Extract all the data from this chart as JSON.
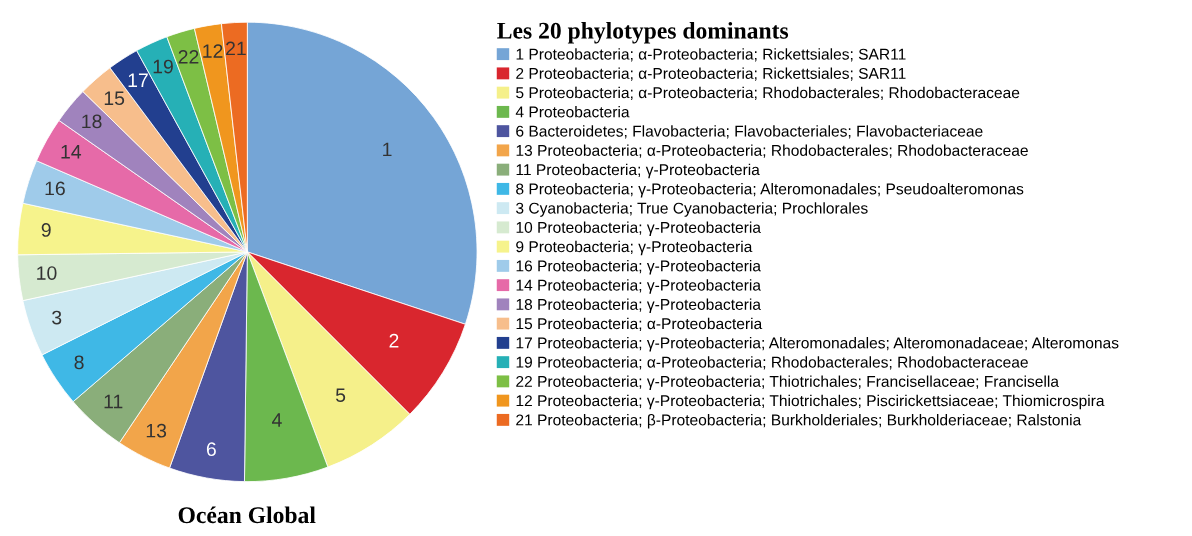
{
  "chart_data": {
    "type": "pie",
    "title": "Océan Global",
    "legend_title": "Les 20 phylotypes dominants",
    "categories": [
      "1 Proteobacteria; α-Proteobacteria; Rickettsiales; SAR11",
      "2 Proteobacteria; α-Proteobacteria; Rickettsiales; SAR11",
      "5 Proteobacteria; α-Proteobacteria; Rhodobacterales; Rhodobacteraceae",
      "4 Proteobacteria",
      "6 Bacteroidetes; Flavobacteria; Flavobacteriales; Flavobacteriaceae",
      "13 Proteobacteria; α-Proteobacteria; Rhodobacterales; Rhodobacteraceae",
      "11 Proteobacteria; γ-Proteobacteria",
      "8 Proteobacteria; γ-Proteobacteria; Alteromonadales; Pseudoalteromonas",
      "3 Cyanobacteria; True Cyanobacteria; Prochlorales",
      "10 Proteobacteria; γ-Proteobacteria",
      "9 Proteobacteria; γ-Proteobacteria",
      "16 Proteobacteria; γ-Proteobacteria",
      "14 Proteobacteria; γ-Proteobacteria",
      "18 Proteobacteria; γ-Proteobacteria",
      "15 Proteobacteria; α-Proteobacteria",
      "17 Proteobacteria; γ-Proteobacteria; Alteromonadales; Alteromonadaceae; Alteromonas",
      "19 Proteobacteria; α-Proteobacteria; Rhodobacterales; Rhodobacteraceae",
      "22 Proteobacteria; γ-Proteobacteria; Thiotrichales; Francisellaceae; Francisella",
      "12 Proteobacteria; γ-Proteobacteria; Thiotrichales; Piscirickettsiaceae; Thiomicrospira",
      "21 Proteobacteria; β-Proteobacteria; Burkholderiales; Burkholderiaceae; Ralstonia"
    ],
    "values": [
      30.1,
      7.4,
      6.8,
      5.9,
      5.3,
      3.9,
      4.3,
      3.9,
      4.0,
      3.2,
      3.6,
      3.1,
      3.2,
      2.6,
      2.5,
      2.2,
      2.3,
      2.0,
      1.9,
      1.8
    ],
    "colors": [
      "#75a5d6",
      "#d9262e",
      "#f5f08a",
      "#6cb84e",
      "#4e559f",
      "#f2a54a",
      "#8aae7a",
      "#3fb8e6",
      "#cde9f2",
      "#d6ead0",
      "#f6f38c",
      "#9fcbea",
      "#e66aa8",
      "#a083bd",
      "#f7be8c",
      "#223f8f",
      "#26b0b6",
      "#7dbf45",
      "#f0961e",
      "#ec6b22"
    ],
    "legend": "right",
    "annotations": [
      {
        "text": "1",
        "x": "1 Proteobacteria; α-Proteobacteria; Rickettsiales; SAR11"
      },
      {
        "text": "2",
        "x": "2 Proteobacteria; α-Proteobacteria; Rickettsiales; SAR11"
      },
      {
        "text": "5",
        "x": "5 Proteobacteria; α-Proteobacteria; Rhodobacterales; Rhodobacteraceae"
      },
      {
        "text": "4",
        "x": "4 Proteobacteria"
      },
      {
        "text": "6",
        "x": "6 Bacteroidetes; Flavobacteria; Flavobacteriales; Flavobacteriaceae"
      },
      {
        "text": "13",
        "x": "13 Proteobacteria; α-Proteobacteria; Rhodobacterales; Rhodobacteraceae"
      },
      {
        "text": "11",
        "x": "11 Proteobacteria; γ-Proteobacteria"
      },
      {
        "text": "8",
        "x": "8 Proteobacteria; γ-Proteobacteria; Alteromonadales; Pseudoalteromonas"
      },
      {
        "text": "3",
        "x": "3 Cyanobacteria; True Cyanobacteria; Prochlorales"
      },
      {
        "text": "10",
        "x": "10 Proteobacteria; γ-Proteobacteria"
      },
      {
        "text": "9",
        "x": "9 Proteobacteria; γ-Proteobacteria"
      },
      {
        "text": "16",
        "x": "16 Proteobacteria; γ-Proteobacteria"
      },
      {
        "text": "14",
        "x": "14 Proteobacteria; γ-Proteobacteria"
      },
      {
        "text": "18",
        "x": "18 Proteobacteria; γ-Proteobacteria"
      },
      {
        "text": "15",
        "x": "15 Proteobacteria; α-Proteobacteria"
      },
      {
        "text": "17",
        "x": "17 Proteobacteria; γ-Proteobacteria; Alteromonadales; Alteromonadaceae; Alteromonas"
      },
      {
        "text": "19",
        "x": "19 Proteobacteria; α-Proteobacteria; Rhodobacterales; Rhodobacteraceae"
      },
      {
        "text": "22",
        "x": "22 Proteobacteria; γ-Proteobacteria; Thiotrichales; Francisellaceae; Francisella"
      },
      {
        "text": "12",
        "x": "12 Proteobacteria; γ-Proteobacteria; Thiotrichales; Piscirickettsiaceae; Thiomicrospira"
      },
      {
        "text": "21",
        "x": "21 Proteobacteria; β-Proteobacteria; Burkholderiales; Burkholderiaceae; Ralstonia"
      }
    ]
  }
}
